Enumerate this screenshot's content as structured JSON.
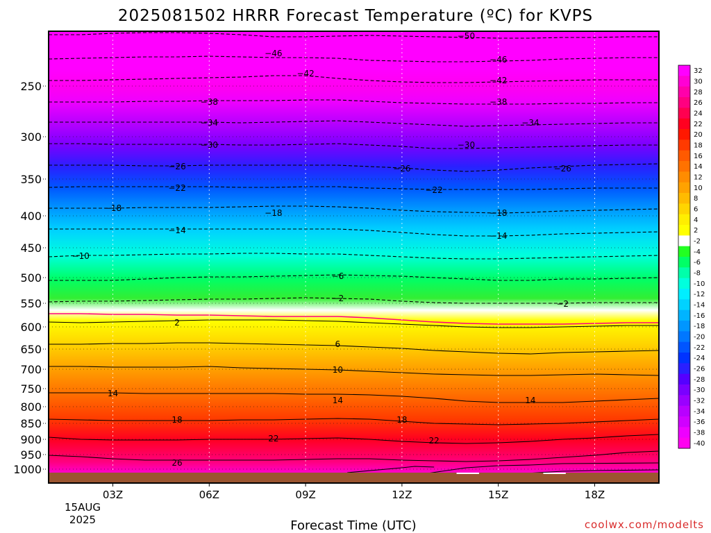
{
  "chart_data": {
    "type": "heatmap",
    "title": "2025081502 HRRR Forecast Temperature (ºC) for KVPS",
    "xlabel": "Forecast Time (UTC)",
    "ylabel": "",
    "x_ticks": [
      "03Z",
      "06Z",
      "09Z",
      "12Z",
      "15Z",
      "18Z"
    ],
    "x_start_label": [
      "15AUG",
      "2025"
    ],
    "y_ticks": [
      250,
      300,
      350,
      400,
      450,
      500,
      550,
      600,
      650,
      700,
      750,
      800,
      850,
      900,
      950,
      1000
    ],
    "y_scale": "log",
    "y_inverted": true,
    "credit": "coolwx.com/modelts",
    "colorbar": {
      "labels": [
        "32",
        "30",
        "28",
        "26",
        "24",
        "22",
        "20",
        "18",
        "16",
        "14",
        "12",
        "10",
        "8",
        "6",
        "4",
        "2",
        "-2",
        "-4",
        "-6",
        "-8",
        "-10",
        "-12",
        "-14",
        "-16",
        "-18",
        "-20",
        "-22",
        "-24",
        "-26",
        "-28",
        "-30",
        "-32",
        "-34",
        "-36",
        "-38",
        "-40"
      ]
    },
    "contours": [
      {
        "level": -50,
        "series": [
          [
            0,
            -50.3
          ],
          [
            18,
            -50.1
          ],
          [
            10,
            -50.0
          ]
        ],
        "labels": [
          [
            14.0,
            -50.0
          ]
        ]
      },
      {
        "level": -46,
        "labels": [
          [
            8.0,
            -46
          ],
          [
            15.0,
            -46
          ]
        ]
      },
      {
        "level": -42,
        "labels": [
          [
            9.0,
            -42
          ],
          [
            15.0,
            -42
          ]
        ]
      },
      {
        "level": -38,
        "labels": [
          [
            6.0,
            -38
          ],
          [
            15.0,
            -38
          ]
        ]
      },
      {
        "level": -34,
        "labels": [
          [
            6.0,
            -34
          ],
          [
            16.0,
            -34
          ]
        ]
      },
      {
        "level": -30,
        "labels": [
          [
            6.0,
            -30
          ],
          [
            14.0,
            -30
          ]
        ]
      },
      {
        "level": -26,
        "labels": [
          [
            5.0,
            -26
          ],
          [
            12.0,
            -26
          ],
          [
            17.0,
            -26
          ]
        ]
      },
      {
        "level": -22,
        "labels": [
          [
            5.0,
            -22
          ],
          [
            13.0,
            -22
          ]
        ]
      },
      {
        "level": -18,
        "labels": [
          [
            3.0,
            -18
          ],
          [
            8.0,
            -18
          ],
          [
            15.0,
            -18
          ]
        ]
      },
      {
        "level": -14,
        "labels": [
          [
            5.0,
            -14
          ],
          [
            15.0,
            -14
          ]
        ]
      },
      {
        "level": -10,
        "labels": [
          [
            2.0,
            -10
          ]
        ]
      },
      {
        "level": -6,
        "labels": [
          [
            10.0,
            -6
          ]
        ]
      },
      {
        "level": -2,
        "labels": [
          [
            10.0,
            -2
          ],
          [
            17.0,
            -2
          ]
        ]
      },
      {
        "level": 2,
        "labels": [
          [
            5.0,
            2
          ]
        ]
      },
      {
        "level": 6,
        "labels": [
          [
            10.0,
            6
          ]
        ]
      },
      {
        "level": 10,
        "labels": [
          [
            10.0,
            10
          ]
        ]
      },
      {
        "level": 14,
        "labels": [
          [
            3.0,
            14
          ],
          [
            10.0,
            14
          ],
          [
            16.0,
            14
          ]
        ]
      },
      {
        "level": 18,
        "labels": [
          [
            5.0,
            18
          ],
          [
            12.0,
            18
          ]
        ]
      },
      {
        "level": 22,
        "labels": [
          [
            8.0,
            22
          ],
          [
            13.0,
            22
          ]
        ]
      },
      {
        "level": 26,
        "labels": [
          [
            5.0,
            26
          ]
        ]
      }
    ]
  }
}
